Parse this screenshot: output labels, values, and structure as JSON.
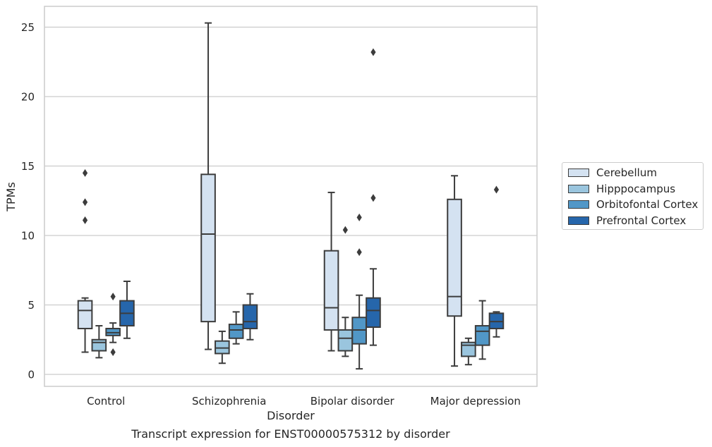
{
  "caption": "Transcript expression for ENST00000575312 by disorder",
  "chart_data": {
    "type": "box",
    "title": "",
    "xlabel": "Disorder",
    "ylabel": "TPMs",
    "ylim": [
      -0.8,
      26.5
    ],
    "yticks": [
      0,
      5,
      10,
      15,
      20,
      25
    ],
    "grid": "horizontal",
    "legend_position": "right",
    "categories": [
      "Control",
      "Schizophrenia",
      "Bipolar disorder",
      "Major depression"
    ],
    "series": [
      {
        "name": "Cerebellum",
        "color": "#d4e2f1",
        "boxes": [
          {
            "whisker_low": 1.6,
            "q1": 3.3,
            "median": 4.6,
            "q3": 5.3,
            "whisker_high": 5.5,
            "outliers": [
              11.1,
              12.4,
              14.5
            ]
          },
          {
            "whisker_low": 1.8,
            "q1": 3.8,
            "median": 10.1,
            "q3": 14.4,
            "whisker_high": 25.3,
            "outliers": []
          },
          {
            "whisker_low": 1.7,
            "q1": 3.2,
            "median": 4.8,
            "q3": 8.9,
            "whisker_high": 13.1,
            "outliers": []
          },
          {
            "whisker_low": 0.6,
            "q1": 4.2,
            "median": 5.6,
            "q3": 12.6,
            "whisker_high": 14.3,
            "outliers": []
          }
        ]
      },
      {
        "name": "Hipppocampus",
        "color": "#9ac5de",
        "boxes": [
          {
            "whisker_low": 1.2,
            "q1": 1.7,
            "median": 2.3,
            "q3": 2.5,
            "whisker_high": 3.5,
            "outliers": []
          },
          {
            "whisker_low": 0.8,
            "q1": 1.5,
            "median": 1.9,
            "q3": 2.4,
            "whisker_high": 3.1,
            "outliers": []
          },
          {
            "whisker_low": 1.3,
            "q1": 1.7,
            "median": 2.6,
            "q3": 3.2,
            "whisker_high": 4.1,
            "outliers": [
              10.4
            ]
          },
          {
            "whisker_low": 0.7,
            "q1": 1.3,
            "median": 2.1,
            "q3": 2.3,
            "whisker_high": 2.6,
            "outliers": []
          }
        ]
      },
      {
        "name": "Orbitofontal Cortex",
        "color": "#5197c7",
        "boxes": [
          {
            "whisker_low": 2.3,
            "q1": 2.8,
            "median": 3.0,
            "q3": 3.3,
            "whisker_high": 3.7,
            "outliers": [
              1.6,
              5.6
            ]
          },
          {
            "whisker_low": 2.2,
            "q1": 2.6,
            "median": 3.2,
            "q3": 3.6,
            "whisker_high": 4.5,
            "outliers": []
          },
          {
            "whisker_low": 0.4,
            "q1": 2.2,
            "median": 3.2,
            "q3": 4.1,
            "whisker_high": 5.7,
            "outliers": [
              8.8,
              11.3
            ]
          },
          {
            "whisker_low": 1.1,
            "q1": 2.1,
            "median": 3.1,
            "q3": 3.5,
            "whisker_high": 5.3,
            "outliers": []
          }
        ]
      },
      {
        "name": "Prefrontal Cortex",
        "color": "#2666ab",
        "boxes": [
          {
            "whisker_low": 2.6,
            "q1": 3.5,
            "median": 4.4,
            "q3": 5.3,
            "whisker_high": 6.7,
            "outliers": []
          },
          {
            "whisker_low": 2.5,
            "q1": 3.3,
            "median": 3.8,
            "q3": 5.0,
            "whisker_high": 5.8,
            "outliers": []
          },
          {
            "whisker_low": 2.1,
            "q1": 3.4,
            "median": 4.6,
            "q3": 5.5,
            "whisker_high": 7.6,
            "outliers": [
              12.7,
              23.2
            ]
          },
          {
            "whisker_low": 2.7,
            "q1": 3.3,
            "median": 3.8,
            "q3": 4.4,
            "whisker_high": 4.5,
            "outliers": [
              13.3
            ]
          }
        ]
      }
    ]
  }
}
